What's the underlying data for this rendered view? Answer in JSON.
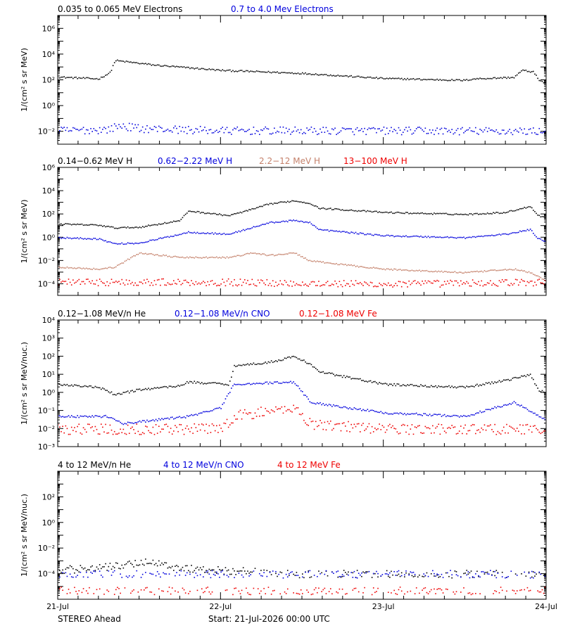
{
  "colors": {
    "black": "#000000",
    "blue": "#0000dd",
    "tan": "#c4806a",
    "red": "#ee0000"
  },
  "footer": {
    "spacecraft": "STEREO Ahead",
    "start": "Start: 21-Jul-2026 00:00 UTC"
  },
  "chart_data": [
    {
      "type": "scatter",
      "ylabel": "1/(cm² s sr MeV)",
      "y_log": true,
      "ylim": [
        0.001,
        10000000
      ],
      "yticks": [
        {
          "v": 0.01,
          "label": "10⁻²"
        },
        {
          "v": 1,
          "label": "10⁰"
        },
        {
          "v": 100,
          "label": "10²"
        },
        {
          "v": 10000,
          "label": "10⁴"
        },
        {
          "v": 1000000,
          "label": "10⁶"
        }
      ],
      "x_days": [
        0,
        3
      ],
      "xticks": [
        "21-Jul",
        "22-Jul",
        "23-Jul",
        "24-Jul"
      ],
      "series": [
        {
          "name": "0.035 to 0.065 MeV Electrons",
          "color": "black",
          "points": [
            [
              0,
              180
            ],
            [
              0.25,
              130
            ],
            [
              0.32,
              400
            ],
            [
              0.35,
              3500
            ],
            [
              0.6,
              1500
            ],
            [
              1.0,
              600
            ],
            [
              1.5,
              350
            ],
            [
              2.0,
              140
            ],
            [
              2.5,
              100
            ],
            [
              2.55,
              130
            ],
            [
              2.8,
              170
            ],
            [
              2.85,
              600
            ],
            [
              2.92,
              450
            ],
            [
              2.95,
              120
            ],
            [
              3.0,
              50
            ]
          ]
        },
        {
          "name": "0.7 to 4.0 Mev Electrons",
          "color": "blue",
          "points": [
            [
              0,
              0.012
            ],
            [
              0.3,
              0.015
            ],
            [
              0.38,
              0.03
            ],
            [
              0.5,
              0.018
            ],
            [
              1.0,
              0.012
            ],
            [
              2.0,
              0.012
            ],
            [
              3.0,
              0.011
            ]
          ]
        }
      ]
    },
    {
      "type": "scatter",
      "ylabel": "1/(cm² s sr MeV)",
      "y_log": true,
      "ylim": [
        1e-05,
        1000000
      ],
      "yticks": [
        {
          "v": 0.0001,
          "label": "10⁻⁴"
        },
        {
          "v": 0.01,
          "label": "10⁻²"
        },
        {
          "v": 1,
          "label": "10⁰"
        },
        {
          "v": 100,
          "label": "10²"
        },
        {
          "v": 10000,
          "label": "10⁴"
        },
        {
          "v": 1000000,
          "label": "10⁶"
        }
      ],
      "x_days": [
        0,
        3
      ],
      "xticks": [
        "21-Jul",
        "22-Jul",
        "23-Jul",
        "24-Jul"
      ],
      "series": [
        {
          "name": "0.14−0.62 MeV H",
          "color": "black",
          "points": [
            [
              0,
              15
            ],
            [
              0.25,
              12
            ],
            [
              0.35,
              7
            ],
            [
              0.5,
              8
            ],
            [
              0.75,
              30
            ],
            [
              0.8,
              200
            ],
            [
              1.05,
              80
            ],
            [
              1.2,
              300
            ],
            [
              1.3,
              800
            ],
            [
              1.45,
              1500
            ],
            [
              1.55,
              900
            ],
            [
              1.6,
              350
            ],
            [
              2.0,
              150
            ],
            [
              2.5,
              100
            ],
            [
              2.75,
              150
            ],
            [
              2.9,
              500
            ],
            [
              2.95,
              80
            ],
            [
              3.0,
              50
            ]
          ]
        },
        {
          "name": "0.62−2.22 MeV H",
          "color": "blue",
          "points": [
            [
              0,
              1
            ],
            [
              0.25,
              0.8
            ],
            [
              0.35,
              0.3
            ],
            [
              0.5,
              0.35
            ],
            [
              0.75,
              2
            ],
            [
              0.8,
              3
            ],
            [
              1.05,
              2
            ],
            [
              1.2,
              8
            ],
            [
              1.3,
              20
            ],
            [
              1.45,
              30
            ],
            [
              1.55,
              20
            ],
            [
              1.6,
              5
            ],
            [
              2.0,
              1.5
            ],
            [
              2.5,
              1
            ],
            [
              2.75,
              2
            ],
            [
              2.9,
              5
            ],
            [
              2.95,
              0.8
            ],
            [
              3.0,
              0.5
            ]
          ]
        },
        {
          "name": "2.2−12 MeV H",
          "color": "tan",
          "points": [
            [
              0,
              0.003
            ],
            [
              0.25,
              0.002
            ],
            [
              0.35,
              0.003
            ],
            [
              0.5,
              0.05
            ],
            [
              0.75,
              0.02
            ],
            [
              1.05,
              0.02
            ],
            [
              1.2,
              0.05
            ],
            [
              1.3,
              0.03
            ],
            [
              1.45,
              0.05
            ],
            [
              1.55,
              0.01
            ],
            [
              2.0,
              0.002
            ],
            [
              2.5,
              0.001
            ],
            [
              2.8,
              0.002
            ],
            [
              2.9,
              0.001
            ],
            [
              3.0,
              0.0002
            ]
          ]
        },
        {
          "name": "13−100 MeV H",
          "color": "red",
          "points": [
            [
              0,
              0.00015
            ],
            [
              1.0,
              0.00015
            ],
            [
              2.0,
              0.0001
            ],
            [
              3.0,
              0.00015
            ]
          ]
        }
      ]
    },
    {
      "type": "scatter",
      "ylabel": "1/(cm² s sr MeV/nuc.)",
      "y_log": true,
      "ylim": [
        0.001,
        10000
      ],
      "yticks": [
        {
          "v": 0.001,
          "label": "10⁻³"
        },
        {
          "v": 0.01,
          "label": "10⁻²"
        },
        {
          "v": 0.1,
          "label": "10⁻¹"
        },
        {
          "v": 1,
          "label": "10⁰"
        },
        {
          "v": 10,
          "label": "10¹"
        },
        {
          "v": 100,
          "label": "10²"
        },
        {
          "v": 1000,
          "label": "10³"
        },
        {
          "v": 10000,
          "label": "10⁴"
        }
      ],
      "x_days": [
        0,
        3
      ],
      "xticks": [
        "21-Jul",
        "22-Jul",
        "23-Jul",
        "24-Jul"
      ],
      "series": [
        {
          "name": "0.12−1.08 MeV/n He",
          "color": "black",
          "points": [
            [
              0,
              3
            ],
            [
              0.25,
              2
            ],
            [
              0.35,
              0.8
            ],
            [
              0.5,
              1.5
            ],
            [
              0.75,
              2.5
            ],
            [
              0.8,
              4
            ],
            [
              1.05,
              3
            ],
            [
              1.08,
              30
            ],
            [
              1.2,
              40
            ],
            [
              1.3,
              50
            ],
            [
              1.45,
              100
            ],
            [
              1.55,
              40
            ],
            [
              1.6,
              15
            ],
            [
              2.0,
              3
            ],
            [
              2.5,
              2
            ],
            [
              2.75,
              5
            ],
            [
              2.9,
              10
            ],
            [
              2.95,
              1.5
            ],
            [
              3.0,
              1
            ]
          ]
        },
        {
          "name": "0.12−1.08 MeV/n CNO",
          "color": "blue",
          "points": [
            [
              0,
              0.05
            ],
            [
              0.3,
              0.05
            ],
            [
              0.4,
              0.02
            ],
            [
              0.8,
              0.05
            ],
            [
              1.0,
              0.15
            ],
            [
              1.08,
              3
            ],
            [
              1.45,
              4
            ],
            [
              1.55,
              0.3
            ],
            [
              2.0,
              0.08
            ],
            [
              2.5,
              0.05
            ],
            [
              2.8,
              0.3
            ],
            [
              2.9,
              0.1
            ],
            [
              3.0,
              0.03
            ]
          ]
        },
        {
          "name": "0.12−1.08 MeV Fe",
          "color": "red",
          "points": [
            [
              0,
              0.01
            ],
            [
              0.3,
              0.01
            ],
            [
              1.0,
              0.01
            ],
            [
              1.08,
              0.05
            ],
            [
              1.45,
              0.15
            ],
            [
              1.55,
              0.02
            ],
            [
              2.0,
              0.01
            ],
            [
              3.0,
              0.01
            ]
          ]
        }
      ]
    },
    {
      "type": "scatter",
      "ylabel": "1/(cm² s sr MeV/nuc.)",
      "y_log": true,
      "ylim": [
        1e-06,
        10000
      ],
      "yticks": [
        {
          "v": 0.0001,
          "label": "10⁻⁴"
        },
        {
          "v": 0.01,
          "label": "10⁻²"
        },
        {
          "v": 1,
          "label": "10⁰"
        },
        {
          "v": 100,
          "label": "10²"
        }
      ],
      "x_days": [
        0,
        3
      ],
      "xticks": [
        "21-Jul",
        "22-Jul",
        "23-Jul",
        "24-Jul"
      ],
      "series": [
        {
          "name": "4 to 12 MeV/n He",
          "color": "black",
          "points": [
            [
              0,
              0.0002
            ],
            [
              0.35,
              0.0004
            ],
            [
              0.55,
              0.001
            ],
            [
              0.75,
              0.0003
            ],
            [
              1.0,
              0.0002
            ],
            [
              1.5,
              0.0001
            ],
            [
              3.0,
              0.0001
            ]
          ]
        },
        {
          "name": "4 to 12 MeV/n CNO",
          "color": "blue",
          "points": [
            [
              0,
              0.0001
            ],
            [
              3.0,
              0.0001
            ]
          ]
        },
        {
          "name": "4 to 12 MeV Fe",
          "color": "red",
          "points": [
            [
              0.1,
              5e-06
            ],
            [
              1.0,
              5e-06
            ],
            [
              2.0,
              5e-06
            ]
          ]
        }
      ]
    }
  ]
}
